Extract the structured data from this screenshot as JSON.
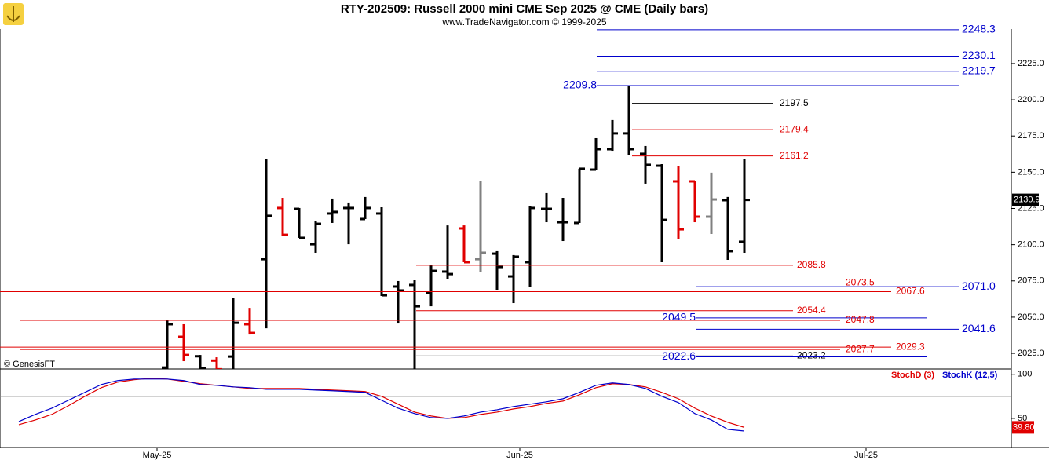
{
  "chart_data": [
    {
      "type": "ohlc",
      "title": "RTY-202509:  Russell 2000 mini CME Sep 2025 @ CME  (Daily bars)",
      "subtitle": "www.TradeNavigator.com © 1999-2025",
      "annotation": "© GenesisFT",
      "categories": [
        null,
        null,
        null,
        null,
        null,
        null,
        null,
        null,
        "May-25",
        null,
        null,
        null,
        null,
        null,
        null,
        null,
        null,
        null,
        null,
        null,
        null,
        null,
        null,
        null,
        null,
        null,
        null,
        null,
        null,
        null,
        "Jun-25",
        null,
        null,
        null,
        null,
        null,
        null,
        null,
        null,
        null,
        null,
        null,
        null,
        null,
        null,
        null,
        null,
        null,
        null,
        null,
        null,
        "Jul-25"
      ],
      "open": [
        null,
        null,
        null,
        null,
        null,
        null,
        null,
        null,
        null,
        2015.2,
        2036.4,
        2023.0,
        2020.0,
        2022.8,
        2045.1,
        2090.0,
        2125.3,
        2124.7,
        2100.3,
        2121.5,
        2125.3,
        2117.7,
        2121.5,
        2071.1,
        2072.2,
        2066.7,
        2081.4,
        2111.2,
        2090.0,
        2093.8,
        2078.1,
        2087.9,
        2124.7,
        2115.5,
        2115.0,
        2151.8,
        2165.9,
        2176.8,
        2162.7,
        2154.5,
        2143.7,
        2143.7,
        2119.3,
        2130.7,
        2102.0,
        null,
        null,
        null,
        null,
        null,
        null,
        null
      ],
      "high": [
        null,
        null,
        null,
        null,
        null,
        null,
        null,
        null,
        null,
        2048.3,
        2045.1,
        2023.9,
        2022.3,
        2063.0,
        2056.4,
        2158.9,
        2132.3,
        2125.3,
        2116.6,
        2131.8,
        2129.1,
        2132.9,
        2125.8,
        2074.9,
        2075.4,
        2085.7,
        2113.3,
        2113.3,
        2144.2,
        2095.5,
        2092.8,
        2126.9,
        2135.6,
        2132.3,
        2152.4,
        2173.5,
        2186.0,
        2209.8,
        2168.1,
        2155.6,
        2154.5,
        2143.7,
        2149.7,
        2132.9,
        2158.9,
        null,
        null,
        null,
        null,
        null,
        null,
        null
      ],
      "low": [
        null,
        null,
        null,
        null,
        null,
        null,
        null,
        null,
        null,
        2010,
        2019.6,
        2012,
        2012,
        2012,
        2038.0,
        2042.3,
        2106.3,
        2104.7,
        2094.4,
        2115.0,
        2100.3,
        2117.7,
        2064.6,
        2045.6,
        2012,
        2057.5,
        2076.5,
        2087.9,
        2081.4,
        2068.9,
        2059.7,
        2071.1,
        2115.5,
        2102.5,
        2115.0,
        2151.3,
        2164.8,
        2161.6,
        2142.1,
        2087.9,
        2103.6,
        2115.5,
        2107.4,
        2089.5,
        2094.4,
        null,
        null,
        null,
        null,
        null,
        null,
        null
      ],
      "close": [
        null,
        null,
        null,
        null,
        null,
        null,
        null,
        null,
        null,
        2045.1,
        2023.9,
        2015.0,
        2014.0,
        2046.1,
        2039.1,
        2119.9,
        2106.8,
        2104.7,
        2114.4,
        2122.6,
        2125.3,
        2125.3,
        2065.1,
        2068.4,
        2057.5,
        2081.9,
        2079.7,
        2087.9,
        2094.4,
        2084.6,
        2091.7,
        2125.3,
        2124.7,
        2115.5,
        2152.4,
        2165.9,
        2176.8,
        2165.9,
        2155.1,
        2117.1,
        2110.6,
        2119.3,
        2131.2,
        2095.5,
        2130.9,
        null,
        null,
        null,
        null,
        null,
        null,
        null
      ],
      "colors": [
        null,
        null,
        null,
        null,
        null,
        null,
        null,
        null,
        null,
        "#000000",
        "#e00000",
        "#000000",
        "#e00000",
        "#000000",
        "#e00000",
        "#000000",
        "#e00000",
        "#000000",
        "#000000",
        "#000000",
        "#000000",
        "#000000",
        "#000000",
        "#000000",
        "#000000",
        "#000000",
        "#000000",
        "#e00000",
        "#808080",
        "#000000",
        "#000000",
        "#000000",
        "#000000",
        "#000000",
        "#000000",
        "#000000",
        "#000000",
        "#000000",
        "#000000",
        "#000000",
        "#e00000",
        "#e00000",
        "#808080",
        "#000000",
        "#000000",
        null,
        null,
        null,
        null,
        null,
        null,
        null
      ],
      "last_price": {
        "value": 2130.9,
        "label": "2130.9"
      },
      "ylim": [
        2014.2,
        2248.8
      ],
      "yticks": [
        {
          "value": 2025,
          "label": "2025.0"
        },
        {
          "value": 2050,
          "label": "2050.0"
        },
        {
          "value": 2075,
          "label": "2075.0"
        },
        {
          "value": 2100,
          "label": "2100.0"
        },
        {
          "value": 2125,
          "label": "2125.0"
        },
        {
          "value": 2150,
          "label": "2150.0"
        },
        {
          "value": 2175,
          "label": "2175.0"
        },
        {
          "value": 2200,
          "label": "2200.0"
        },
        {
          "value": 2225,
          "label": "2225.0"
        }
      ],
      "levels": [
        {
          "value": 2248.3,
          "label": "2248.3",
          "color": "#0000cc"
        },
        {
          "value": 2230.1,
          "label": "2230.1",
          "color": "#0000cc"
        },
        {
          "value": 2219.7,
          "label": "2219.7",
          "color": "#0000cc"
        },
        {
          "value": 2209.8,
          "label": "2209.8",
          "color": "#0000cc"
        },
        {
          "value": 2197.5,
          "label": "2197.5",
          "color": "#000000"
        },
        {
          "value": 2179.4,
          "label": "2179.4",
          "color": "#e00000"
        },
        {
          "value": 2161.2,
          "label": "2161.2",
          "color": "#e00000"
        },
        {
          "value": 2085.8,
          "label": "2085.8",
          "color": "#e00000"
        },
        {
          "value": 2073.5,
          "label": "2073.5",
          "color": "#e00000"
        },
        {
          "value": 2071.0,
          "label": "2071.0",
          "color": "#0000cc"
        },
        {
          "value": 2067.6,
          "label": "2067.6",
          "color": "#e00000"
        },
        {
          "value": 2054.4,
          "label": "2054.4",
          "color": "#e00000"
        },
        {
          "value": 2049.5,
          "label": "2049.5",
          "color": "#0000cc"
        },
        {
          "value": 2047.8,
          "label": "2047.8",
          "color": "#e00000"
        },
        {
          "value": 2041.6,
          "label": "2041.6",
          "color": "#0000cc"
        },
        {
          "value": 2029.3,
          "label": "2029.3",
          "color": "#e00000"
        },
        {
          "value": 2027.7,
          "label": "2027.7",
          "color": "#e00000"
        },
        {
          "value": 2023.2,
          "label": "2023.2",
          "color": "#000000"
        },
        {
          "value": 2022.6,
          "label": "2022.6",
          "color": "#0000cc"
        }
      ]
    },
    {
      "type": "line",
      "series": [
        {
          "name": "StochD (3)",
          "color": "#e00000",
          "values": [
            42.9,
            48.2,
            54.5,
            64.3,
            75.0,
            84.8,
            91.1,
            93.8,
            95.5,
            94.6,
            92.0,
            89.3,
            87.5,
            85.7,
            83.9,
            83.9,
            83.9,
            83.9,
            83.0,
            82.1,
            81.3,
            80.4,
            75.0,
            66.1,
            57.1,
            52.7,
            50.0,
            50.9,
            54.5,
            57.1,
            60.7,
            63.4,
            67.0,
            69.6,
            76.8,
            84.8,
            89.3,
            88.4,
            85.7,
            79.5,
            72.3,
            61.6,
            52.7,
            45.5,
            39.8,
            null,
            null,
            null,
            null,
            null,
            null,
            null
          ],
          "last_label": "39.80"
        },
        {
          "name": "StochK (12,5)",
          "color": "#0000cc",
          "values": [
            46.4,
            54.5,
            61.6,
            70.5,
            79.5,
            88.4,
            92.9,
            94.6,
            94.6,
            94.6,
            92.9,
            88.4,
            87.5,
            85.7,
            84.8,
            83.0,
            83.0,
            83.0,
            82.1,
            81.3,
            80.4,
            79.5,
            70.5,
            61.6,
            55.4,
            50.9,
            50.0,
            52.7,
            57.1,
            59.8,
            63.4,
            66.1,
            68.8,
            72.3,
            79.5,
            87.5,
            90.2,
            88.4,
            83.9,
            75.0,
            67.9,
            55.4,
            48.2,
            37.5,
            35.7,
            null,
            null,
            null,
            null,
            null,
            null,
            null
          ]
        }
      ],
      "ylim": [
        17,
        106
      ],
      "yticks": [
        50,
        100
      ],
      "reference_line": 75
    }
  ]
}
